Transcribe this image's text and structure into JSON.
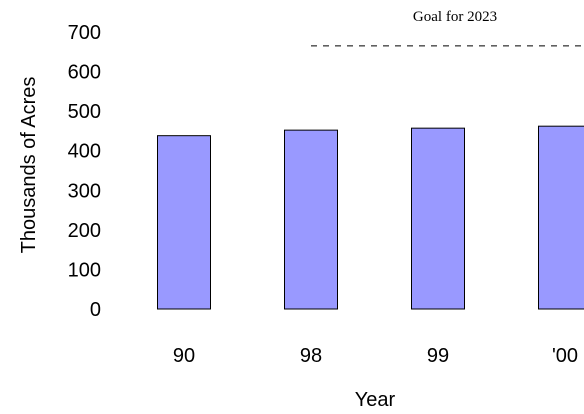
{
  "chart_data": {
    "type": "bar",
    "categories": [
      "90",
      "98",
      "99",
      "'00"
    ],
    "values": [
      438,
      452,
      457,
      462
    ],
    "title": "",
    "xlabel": "Year",
    "ylabel": "Thousands of Acres",
    "ylim": [
      0,
      700
    ],
    "yticks": [
      "0",
      "100",
      "200",
      "300",
      "400",
      "500",
      "600",
      "700"
    ],
    "grid": false,
    "bar_color": "#9999ff",
    "bar_edge_color": "#000000",
    "reference_line": {
      "label": "Goal for 2023",
      "value": 665,
      "style": "dashed"
    }
  }
}
